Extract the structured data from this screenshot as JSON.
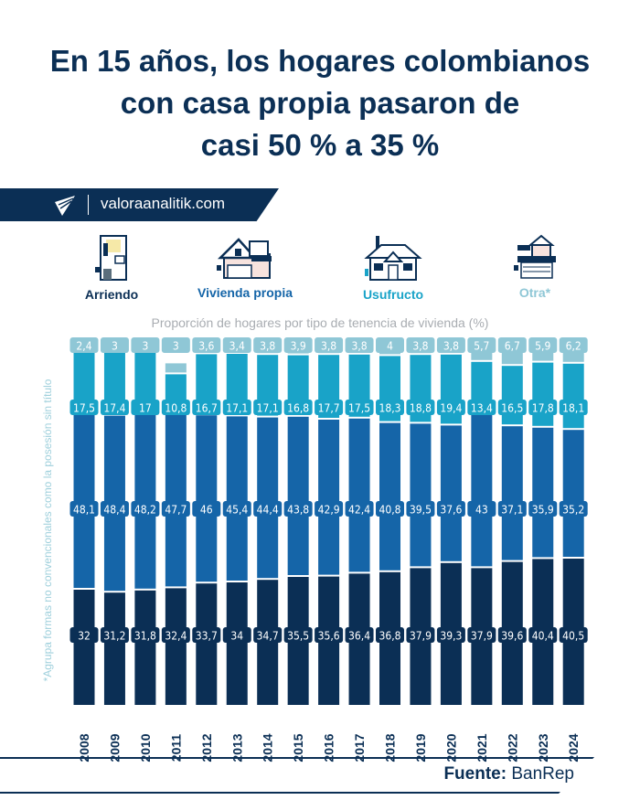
{
  "title_lines": [
    "En 15 años, los hogares colombianos",
    "con casa propia pasaron de",
    "casi 50 % a 35 %"
  ],
  "brand": {
    "site": "valoraanalitik.com",
    "logo_icon": "valora-logo-icon"
  },
  "legend": [
    {
      "label": "Arriendo",
      "color": "#0b2f55",
      "icon": "apartment-building-icon"
    },
    {
      "label": "Vivienda propia",
      "color": "#1565a8",
      "icon": "two-story-house-icon"
    },
    {
      "label": "Usufructo",
      "color": "#19a3c8",
      "icon": "house-with-chimney-icon"
    },
    {
      "label": "Otra*",
      "color": "#8fc7d6",
      "icon": "house-with-garage-icon"
    }
  ],
  "footnote": "*Agrupa formas no convencionales como la posesión sin título",
  "source": {
    "label": "Fuente:",
    "value": "BanRep"
  },
  "chart_data": {
    "type": "bar",
    "stacked": true,
    "title": "Proporción de hogares por tipo de tenencia de vivienda (%)",
    "xlabel": "",
    "ylabel": "",
    "ylim": [
      0,
      100
    ],
    "grid": false,
    "legend": "top",
    "categories": [
      "2008",
      "2009",
      "2010",
      "2011",
      "2012",
      "2013",
      "2014",
      "2015",
      "2016",
      "2017",
      "2018",
      "2019",
      "2020",
      "2021",
      "2022",
      "2023",
      "2024"
    ],
    "series": [
      {
        "name": "Arriendo",
        "color": "#0b2f55",
        "values": [
          32,
          31.2,
          31.8,
          32.4,
          33.7,
          34,
          34.7,
          35.5,
          35.6,
          36.4,
          36.8,
          37.9,
          39.3,
          37.9,
          39.6,
          40.4,
          40.5
        ],
        "labels": [
          "32",
          "31,2",
          "31,8",
          "32,4",
          "33,7",
          "34",
          "34,7",
          "35,5",
          "35,6",
          "36,4",
          "36,8",
          "37,9",
          "39,3",
          "37,9",
          "39,6",
          "40,4",
          "40,5"
        ]
      },
      {
        "name": "Vivienda propia",
        "color": "#1565a8",
        "values": [
          48.1,
          48.4,
          48.2,
          47.7,
          46,
          45.4,
          44.4,
          43.8,
          42.9,
          42.4,
          40.8,
          39.5,
          37.6,
          43,
          37.1,
          35.9,
          35.2
        ],
        "labels": [
          "48,1",
          "48,4",
          "48,2",
          "47,7",
          "46",
          "45,4",
          "44,4",
          "43,8",
          "42,9",
          "42,4",
          "40,8",
          "39,5",
          "37,6",
          "43",
          "37,1",
          "35,9",
          "35,2"
        ]
      },
      {
        "name": "Usufructo",
        "color": "#19a3c8",
        "values": [
          17.5,
          17.4,
          17,
          10.8,
          16.7,
          17.1,
          17.1,
          16.8,
          17.7,
          17.5,
          18.3,
          18.8,
          19.4,
          13.4,
          16.5,
          17.8,
          18.1
        ],
        "labels": [
          "17,5",
          "17,4",
          "17",
          "10,8",
          "16,7",
          "17,1",
          "17,1",
          "16,8",
          "17,7",
          "17,5",
          "18,3",
          "18,8",
          "19,4",
          "13,4",
          "16,5",
          "17,8",
          "18,1"
        ]
      },
      {
        "name": "Otra*",
        "color": "#8fc7d6",
        "values": [
          2.4,
          3,
          3,
          3,
          3.6,
          3.4,
          3.8,
          3.9,
          3.8,
          3.8,
          4,
          3.8,
          3.8,
          5.7,
          6.7,
          5.9,
          6.2
        ],
        "labels": [
          "2,4",
          "3",
          "3",
          "3",
          "3,6",
          "3,4",
          "3,8",
          "3,9",
          "3,8",
          "3,8",
          "4",
          "3,8",
          "3,8",
          "5,7",
          "6,7",
          "5,9",
          "6,2"
        ]
      }
    ]
  }
}
